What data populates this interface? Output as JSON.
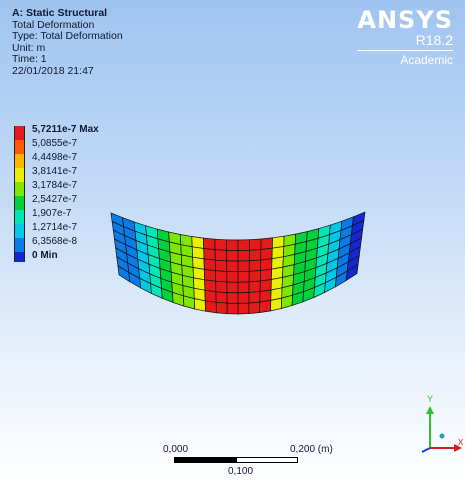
{
  "header": {
    "title": "A: Static Structural",
    "lines": [
      "Total Deformation",
      "Type: Total Deformation",
      "Unit: m",
      "Time: 1",
      "22/01/2018 21:47"
    ]
  },
  "logo": {
    "brand": "ANSYS",
    "release": "R18.2",
    "edition": "Academic"
  },
  "legend": {
    "items": [
      {
        "label": "5,7211e-7 Max",
        "color": "#e41a1c"
      },
      {
        "label": "5,0855e-7",
        "color": "#ff5a00"
      },
      {
        "label": "4,4498e-7",
        "color": "#ffb400"
      },
      {
        "label": "3,8141e-7",
        "color": "#e6f000"
      },
      {
        "label": "3,1784e-7",
        "color": "#7fe600"
      },
      {
        "label": "2,5427e-7",
        "color": "#00d23c"
      },
      {
        "label": "1,907e-7",
        "color": "#00e6b4"
      },
      {
        "label": "1,2714e-7",
        "color": "#00c8e6"
      },
      {
        "label": "6,3568e-8",
        "color": "#0a7ae6"
      },
      {
        "label": "0 Min",
        "color": "#1428d2"
      }
    ]
  },
  "scale_bar": {
    "left_label": "0,000",
    "right_label": "0,200 (m)",
    "mid_label": "0,100"
  },
  "triad": {
    "y_label": "Y",
    "x_label": "X"
  },
  "colors": {
    "background_top": "#9fc3f0",
    "background_bottom": "#ffffff"
  }
}
